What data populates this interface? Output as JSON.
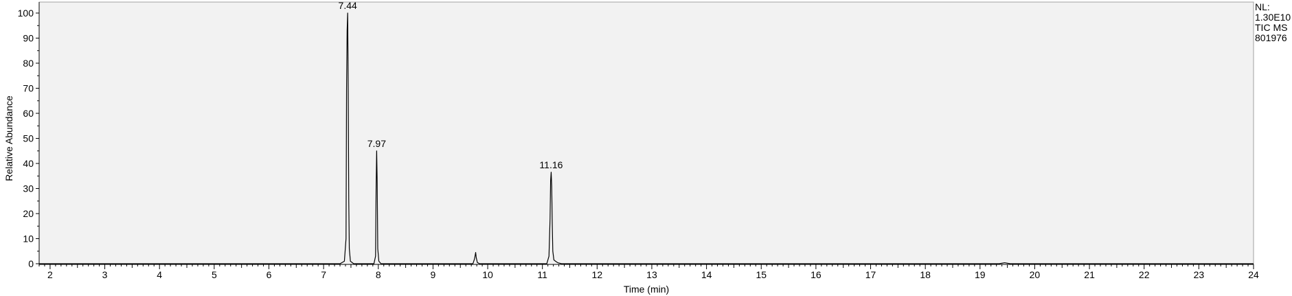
{
  "chart_data": {
    "type": "line",
    "xlabel": "Time (min)",
    "ylabel": "Relative Abundance",
    "xlim": [
      1.8,
      24
    ],
    "ylim": [
      0,
      100
    ],
    "x_ticks": [
      2,
      3,
      4,
      5,
      6,
      7,
      8,
      9,
      10,
      11,
      12,
      13,
      14,
      15,
      16,
      17,
      18,
      19,
      20,
      21,
      22,
      23,
      24
    ],
    "y_ticks": [
      0,
      10,
      20,
      30,
      40,
      50,
      60,
      70,
      80,
      90,
      100
    ],
    "grid": false,
    "series": [
      {
        "x": [
          1.8,
          7.3,
          7.38,
          7.41,
          7.42,
          7.43,
          7.44,
          7.45,
          7.46,
          7.47,
          7.49,
          7.55,
          7.92,
          7.95,
          7.96,
          7.97,
          7.98,
          7.99,
          8.01,
          8.05,
          9.73,
          9.76,
          9.78,
          9.79,
          9.81,
          9.85,
          11.08,
          11.12,
          11.14,
          11.15,
          11.16,
          11.17,
          11.18,
          11.19,
          11.21,
          11.24,
          11.28,
          11.35,
          19.35,
          19.45,
          19.55,
          24.0
        ],
        "y": [
          0,
          0,
          1,
          10,
          70,
          93,
          100,
          70,
          25,
          6,
          1,
          0,
          0,
          3,
          30,
          45,
          32,
          6,
          1,
          0,
          0,
          2,
          4.5,
          2.5,
          0.5,
          0,
          0,
          3,
          18,
          33,
          36.5,
          31,
          16,
          5,
          1.5,
          1,
          0.4,
          0,
          0,
          0.4,
          0,
          0
        ]
      }
    ],
    "peak_labels": [
      {
        "x": 7.44,
        "y": 100,
        "text": "7.44"
      },
      {
        "x": 7.97,
        "y": 45,
        "text": "7.97"
      },
      {
        "x": 11.16,
        "y": 36.5,
        "text": "11.16"
      }
    ],
    "info": [
      "NL:",
      "1.30E10",
      "TIC  MS",
      "801976"
    ]
  }
}
